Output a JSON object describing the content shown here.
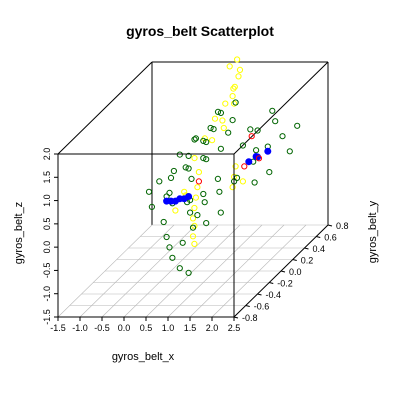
{
  "chart_data": {
    "type": "scatter",
    "title": "gyros_belt Scatterplot",
    "xlabel": "gyros_belt_x",
    "ylabel": "gyros_belt_y",
    "zlabel": "gyros_belt_z",
    "xlim": [
      -1.5,
      2.5
    ],
    "ylim": [
      -0.8,
      0.8
    ],
    "zlim": [
      -1.5,
      2.0
    ],
    "x_ticks": [
      "-1.5",
      "-1.0",
      "-0.5",
      "0.0",
      "0.5",
      "1.0",
      "1.5",
      "2.0",
      "2.5"
    ],
    "y_ticks": [
      "-0.8",
      "-0.6",
      "-0.4",
      "-0.2",
      "0.0",
      "0.2",
      "0.4",
      "0.6",
      "0.8"
    ],
    "z_ticks": [
      "-1.5",
      "-1.0",
      "-0.5",
      "0.0",
      "0.5",
      "1.0",
      "1.5",
      "2.0"
    ],
    "grid": true,
    "colors": {
      "green": "#006400",
      "yellow": "#ffff00",
      "blue": "#0000ff",
      "red": "#ff0000"
    },
    "series": [
      {
        "color": "yellow",
        "marker": "circle-open",
        "points": [
          [
            0.8,
            0.4,
            2.4
          ],
          [
            0.9,
            0.5,
            2.2
          ],
          [
            0.7,
            0.6,
            2.3
          ],
          [
            0.8,
            0.55,
            2.0
          ],
          [
            0.85,
            0.45,
            1.9
          ],
          [
            0.75,
            0.5,
            1.8
          ],
          [
            0.8,
            0.45,
            1.7
          ],
          [
            0.9,
            0.4,
            1.6
          ],
          [
            0.7,
            0.4,
            1.6
          ],
          [
            0.6,
            0.3,
            1.4
          ],
          [
            0.7,
            0.35,
            1.3
          ],
          [
            0.8,
            0.3,
            1.2
          ],
          [
            0.5,
            0.2,
            1.1
          ],
          [
            0.6,
            0.25,
            1.0
          ],
          [
            0.4,
            0.1,
            0.8
          ],
          [
            0.5,
            0.1,
            0.5
          ],
          [
            0.6,
            0.0,
            0.3
          ],
          [
            0.7,
            -0.1,
            0.2
          ],
          [
            0.8,
            -0.2,
            0.1
          ],
          [
            0.9,
            -0.3,
            0.0
          ],
          [
            1.0,
            -0.35,
            -0.1
          ],
          [
            1.1,
            -0.45,
            -0.2
          ],
          [
            1.2,
            -0.5,
            -0.3
          ],
          [
            0.3,
            0.0,
            0.2
          ],
          [
            0.2,
            0.1,
            0.0
          ],
          [
            0.1,
            0.0,
            -0.2
          ],
          [
            1.3,
            0.1,
            0.4
          ],
          [
            1.4,
            0.0,
            0.3
          ],
          [
            1.2,
            0.2,
            0.5
          ],
          [
            1.5,
            0.1,
            0.3
          ]
        ]
      },
      {
        "color": "green",
        "marker": "circle-open",
        "points": [
          [
            0.0,
            0.0,
            0.5
          ],
          [
            0.2,
            0.1,
            0.6
          ],
          [
            0.4,
            0.0,
            0.7
          ],
          [
            0.6,
            0.1,
            0.8
          ],
          [
            0.8,
            0.0,
            0.9
          ],
          [
            1.0,
            0.1,
            1.0
          ],
          [
            0.3,
            0.2,
            1.1
          ],
          [
            0.5,
            0.3,
            1.2
          ],
          [
            0.7,
            0.2,
            1.3
          ],
          [
            0.9,
            0.3,
            1.1
          ],
          [
            0.1,
            -0.1,
            0.3
          ],
          [
            0.3,
            -0.2,
            0.2
          ],
          [
            0.5,
            -0.1,
            0.1
          ],
          [
            0.7,
            -0.2,
            0.0
          ],
          [
            0.9,
            -0.1,
            0.1
          ],
          [
            1.1,
            0.0,
            0.2
          ],
          [
            1.3,
            0.1,
            0.3
          ],
          [
            1.5,
            0.0,
            0.5
          ],
          [
            1.2,
            -0.1,
            0.6
          ],
          [
            1.0,
            -0.2,
            0.4
          ],
          [
            0.6,
            0.4,
            1.4
          ],
          [
            0.8,
            0.5,
            1.5
          ],
          [
            0.4,
            0.3,
            0.9
          ],
          [
            0.2,
            0.4,
            0.8
          ],
          [
            0.0,
            0.3,
            0.6
          ],
          [
            -0.2,
            0.2,
            0.4
          ],
          [
            -0.4,
            0.1,
            0.3
          ],
          [
            -0.1,
            0.0,
            0.1
          ],
          [
            0.3,
            0.1,
            -0.1
          ],
          [
            0.6,
            0.0,
            -0.3
          ],
          [
            0.9,
            -0.3,
            -0.2
          ],
          [
            1.2,
            -0.3,
            -0.1
          ],
          [
            1.4,
            -0.2,
            0.0
          ],
          [
            1.6,
            0.2,
            0.6
          ],
          [
            1.8,
            0.3,
            0.8
          ],
          [
            2.0,
            0.4,
            0.9
          ],
          [
            2.2,
            0.5,
            1.0
          ],
          [
            2.3,
            0.3,
            0.7
          ],
          [
            1.9,
            0.0,
            0.4
          ],
          [
            2.1,
            0.1,
            0.5
          ],
          [
            1.7,
            0.5,
            1.1
          ],
          [
            1.5,
            0.6,
            1.2
          ],
          [
            1.3,
            0.5,
            0.9
          ],
          [
            1.1,
            0.4,
            0.7
          ],
          [
            0.5,
            -0.4,
            -0.5
          ],
          [
            0.7,
            -0.5,
            -0.6
          ],
          [
            0.3,
            -0.3,
            -0.4
          ],
          [
            0.1,
            -0.2,
            -0.2
          ],
          [
            -0.3,
            -0.1,
            0.0
          ],
          [
            -0.5,
            0.0,
            0.2
          ],
          [
            0.4,
            0.5,
            1.3
          ],
          [
            0.6,
            0.6,
            1.0
          ],
          [
            1.0,
            0.6,
            0.8
          ],
          [
            1.4,
            0.4,
            0.6
          ],
          [
            0.8,
            -0.4,
            -0.4
          ],
          [
            1.0,
            -0.6,
            -0.7
          ],
          [
            1.2,
            -0.6,
            -0.8
          ],
          [
            0.2,
            0.0,
            1.0
          ],
          [
            0.4,
            0.1,
            1.2
          ],
          [
            0.6,
            -0.1,
            0.6
          ]
        ]
      },
      {
        "color": "blue",
        "marker": "circle-filled",
        "points": [
          [
            0.0,
            0.0,
            0.0
          ],
          [
            0.1,
            0.0,
            0.0
          ],
          [
            0.2,
            0.0,
            0.05
          ],
          [
            0.3,
            0.0,
            0.05
          ],
          [
            0.4,
            0.0,
            0.1
          ],
          [
            -0.1,
            0.0,
            0.0
          ],
          [
            1.5,
            0.2,
            0.6
          ],
          [
            1.6,
            0.25,
            0.65
          ],
          [
            1.7,
            0.2,
            0.7
          ],
          [
            1.8,
            0.3,
            0.7
          ]
        ]
      },
      {
        "color": "red",
        "marker": "circle-open",
        "points": [
          [
            1.4,
            0.2,
            0.5
          ],
          [
            1.6,
            0.3,
            0.55
          ],
          [
            0.5,
            0.1,
            0.3
          ],
          [
            1.3,
            0.4,
            0.9
          ]
        ]
      }
    ]
  }
}
